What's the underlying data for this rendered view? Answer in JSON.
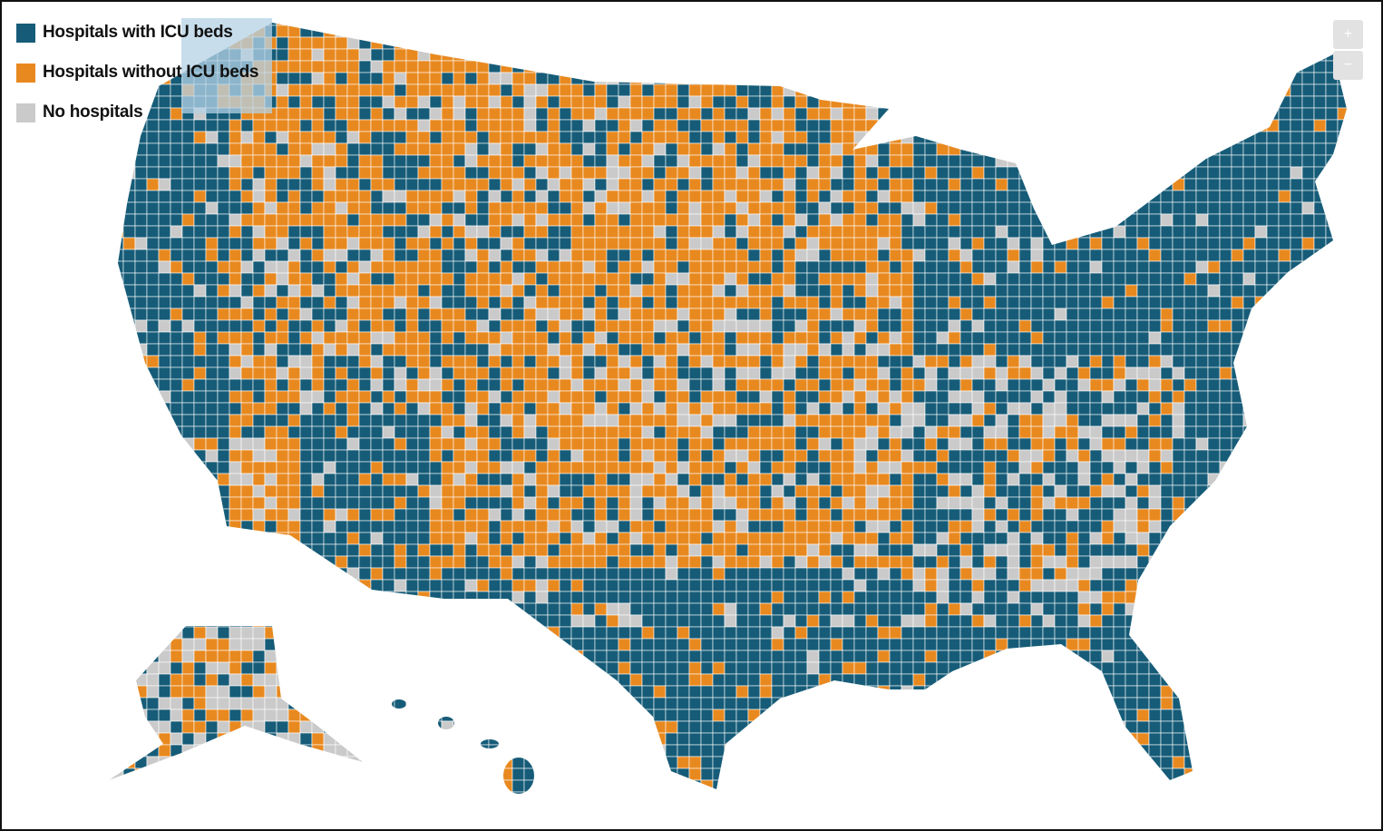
{
  "legend": {
    "items": [
      {
        "label": "Hospitals with ICU beds",
        "color": "#165c78"
      },
      {
        "label": "Hospitals without ICU beds",
        "color": "#e8891f"
      },
      {
        "label": "No hospitals",
        "color": "#cacaca"
      }
    ]
  },
  "zoom": {
    "in": "+",
    "out": "−"
  }
}
